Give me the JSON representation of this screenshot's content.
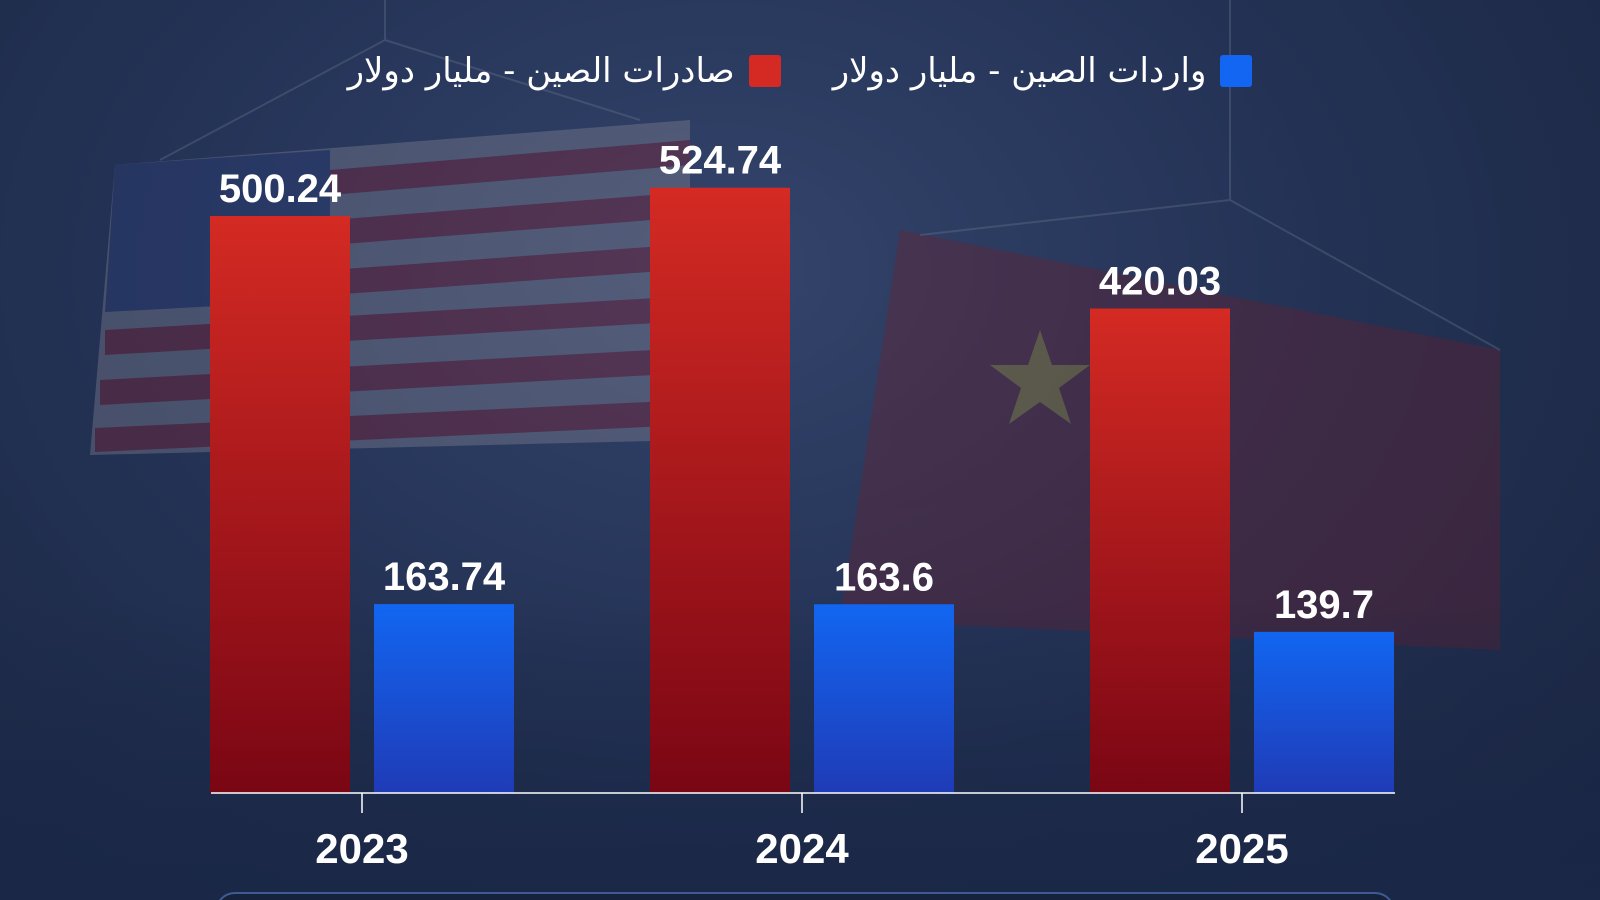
{
  "chart_data": {
    "type": "bar",
    "categories": [
      "2023",
      "2024",
      "2025"
    ],
    "series": [
      {
        "name": "صادرات الصين - مليار دولار",
        "color": "#d42a23",
        "values": [
          500.24,
          524.74,
          420.03
        ],
        "labels": [
          "500.24",
          "524.74",
          "420.03"
        ]
      },
      {
        "name": "واردات الصين - مليار دولار",
        "color": "#1266f1",
        "values": [
          163.74,
          163.6,
          139.7
        ],
        "labels": [
          "163.74",
          "163.6",
          "139.7"
        ]
      }
    ],
    "ylim": [
      0,
      550
    ],
    "grid": false,
    "legend_position": "top-center"
  },
  "colors": {
    "exports_top": "#d42a23",
    "exports_bottom": "#7a0614",
    "imports_top": "#1266f1",
    "imports_bottom": "#1f3bb7",
    "background": "#1d2a4a"
  }
}
